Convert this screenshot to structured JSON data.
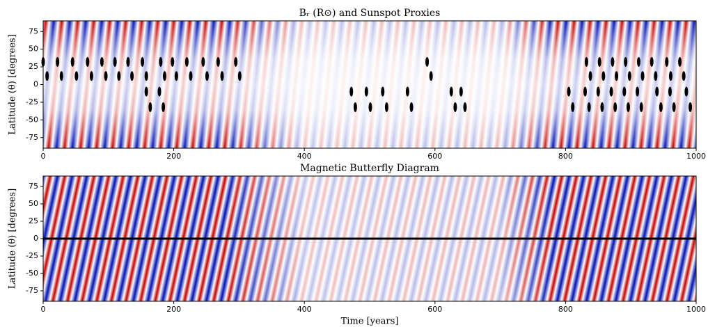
{
  "chart_data": [
    {
      "type": "heatmap",
      "title": "Bᵣ (R⊙) and Sunspot Proxies",
      "ylabel": "Latitude (θ) [degrees]",
      "xlim": [
        0,
        1000
      ],
      "xticks": [
        0,
        200,
        400,
        600,
        800,
        1000
      ],
      "ylim": [
        -90,
        90
      ],
      "yticks": [
        -75,
        -50,
        -25,
        0,
        25,
        50,
        75
      ],
      "scatter": {
        "color": "#000000",
        "x": [
          0,
          6,
          22,
          28,
          45,
          51,
          68,
          74,
          90,
          96,
          110,
          116,
          130,
          136,
          152,
          158,
          180,
          186,
          198,
          204,
          220,
          226,
          245,
          251,
          268,
          274,
          295,
          301,
          588,
          594,
          832,
          838,
          852,
          858,
          872,
          878,
          892,
          898,
          912,
          918,
          932,
          938,
          955,
          961,
          975,
          981,
          158,
          164,
          178,
          184,
          472,
          478,
          495,
          501,
          520,
          526,
          558,
          564,
          625,
          631,
          640,
          646,
          805,
          811,
          830,
          836,
          850,
          856,
          870,
          876,
          890,
          896,
          910,
          916,
          940,
          946,
          960,
          966,
          985,
          991
        ],
        "y": [
          32,
          12,
          32,
          12,
          32,
          12,
          32,
          12,
          32,
          12,
          32,
          12,
          32,
          12,
          32,
          12,
          32,
          12,
          32,
          12,
          32,
          12,
          32,
          12,
          32,
          12,
          32,
          12,
          32,
          12,
          32,
          12,
          32,
          12,
          32,
          12,
          32,
          12,
          32,
          12,
          32,
          12,
          32,
          12,
          32,
          12,
          -10,
          -32,
          -10,
          -32,
          -10,
          -32,
          -10,
          -32,
          -10,
          -32,
          -10,
          -32,
          -10,
          -32,
          -10,
          -32,
          -10,
          -32,
          -10,
          -32,
          -10,
          -32,
          -10,
          -32,
          -10,
          -32,
          -10,
          -32,
          -10,
          -32,
          -10,
          -32,
          -10,
          -32
        ]
      }
    },
    {
      "type": "heatmap",
      "title": "Magnetic Butterfly Diagram",
      "ylabel": "Latitude (θ) [degrees]",
      "xlabel": "Time [years]",
      "xlim": [
        0,
        1000
      ],
      "xticks": [
        0,
        200,
        400,
        600,
        800,
        1000
      ],
      "ylim": [
        -90,
        90
      ],
      "yticks": [
        -75,
        -50,
        -25,
        0,
        25,
        50,
        75
      ]
    }
  ]
}
